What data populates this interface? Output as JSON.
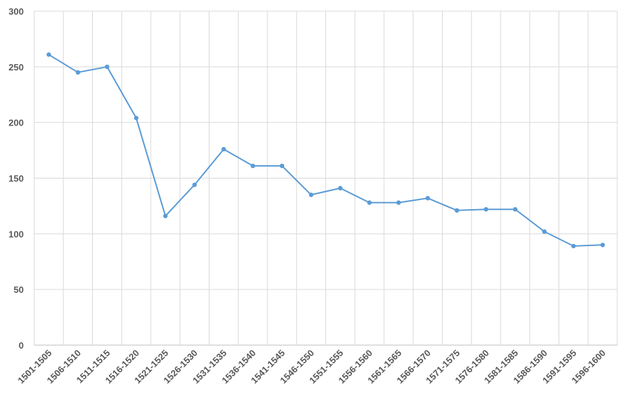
{
  "chart_data": {
    "type": "line",
    "title": "",
    "xlabel": "",
    "ylabel": "",
    "categories": [
      "1501-1505",
      "1506-1510",
      "1511-1515",
      "1516-1520",
      "1521-1525",
      "1526-1530",
      "1531-1535",
      "1536-1540",
      "1541-1545",
      "1546-1550",
      "1551-1555",
      "1556-1560",
      "1561-1565",
      "1566-1570",
      "1571-1575",
      "1576-1580",
      "1581-1585",
      "1586-1590",
      "1591-1595",
      "1596-1600"
    ],
    "series": [
      {
        "values": [
          261,
          245,
          250,
          204,
          116,
          144,
          176,
          161,
          161,
          135,
          141,
          128,
          128,
          132,
          121,
          122,
          122,
          102,
          89,
          90
        ]
      }
    ],
    "ylim": [
      0,
      300
    ],
    "yticks": [
      0,
      50,
      100,
      150,
      200,
      250,
      300
    ],
    "grid": "both",
    "legend": "none",
    "colors": {
      "line": "#5b9bd5",
      "grid": "#d9d9d9",
      "axis": "#bfbfbf",
      "text": "#595959"
    }
  }
}
